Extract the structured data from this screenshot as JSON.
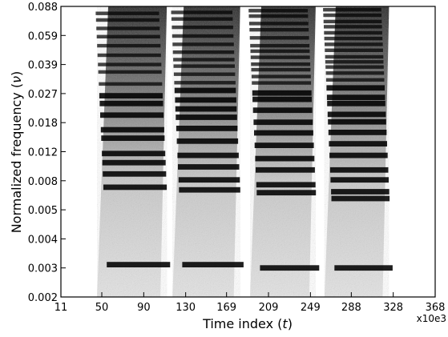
{
  "chart_data": {
    "type": "heatmap",
    "title": "",
    "xlabel_main": "Time index (",
    "xlabel_var": "t",
    "xlabel_close": ")",
    "ylabel_main": "Normalized frequency (",
    "ylabel_var": "ν",
    "ylabel_close": ")",
    "x_multiplier": "x10e3",
    "x_ticks": [
      "11",
      "50",
      "90",
      "130",
      "169",
      "209",
      "249",
      "288",
      "328",
      "368"
    ],
    "x_range": [
      11,
      368
    ],
    "y_ticks": [
      "0.002",
      "0.003",
      "0.004",
      "0.005",
      "0.008",
      "0.012",
      "0.018",
      "0.027",
      "0.039",
      "0.059",
      "0.088"
    ],
    "y_range": [
      0.002,
      0.088
    ],
    "y_scale": "log",
    "grid": false,
    "colormap": "grayscale (white = low, black = high)",
    "segments": [
      {
        "name": "segment-1",
        "x_start": 50,
        "x_end": 112,
        "line_levels": [
          0.0031,
          0.0072,
          0.0088,
          0.0103,
          0.0117,
          0.0145,
          0.0163,
          0.02,
          0.0235,
          0.0262,
          0.0305,
          0.0355,
          0.039,
          0.0445,
          0.051,
          0.058,
          0.065,
          0.073,
          0.08
        ]
      },
      {
        "name": "segment-2",
        "x_start": 122,
        "x_end": 182,
        "line_levels": [
          0.0031,
          0.0069,
          0.0081,
          0.0097,
          0.0114,
          0.0139,
          0.0166,
          0.0194,
          0.0218,
          0.0247,
          0.0281,
          0.031,
          0.0345,
          0.0382,
          0.0418,
          0.0465,
          0.052,
          0.0585,
          0.066,
          0.074,
          0.081
        ]
      },
      {
        "name": "segment-3",
        "x_start": 196,
        "x_end": 254,
        "line_levels": [
          0.003,
          0.0066,
          0.0075,
          0.0093,
          0.0109,
          0.0131,
          0.0156,
          0.0181,
          0.0214,
          0.0249,
          0.0272,
          0.0309,
          0.0335,
          0.0365,
          0.0392,
          0.0432,
          0.0472,
          0.051,
          0.057,
          0.0638,
          0.0695,
          0.077,
          0.083
        ]
      },
      {
        "name": "segment-4",
        "x_start": 267,
        "x_end": 324,
        "line_levels": [
          0.003,
          0.006,
          0.0067,
          0.0081,
          0.0093,
          0.0114,
          0.0134,
          0.0157,
          0.0182,
          0.0202,
          0.0235,
          0.0256,
          0.029,
          0.0321,
          0.035,
          0.0378,
          0.0405,
          0.0435,
          0.0478,
          0.052,
          0.0565,
          0.0612,
          0.0665,
          0.0715,
          0.078,
          0.084
        ]
      }
    ]
  }
}
